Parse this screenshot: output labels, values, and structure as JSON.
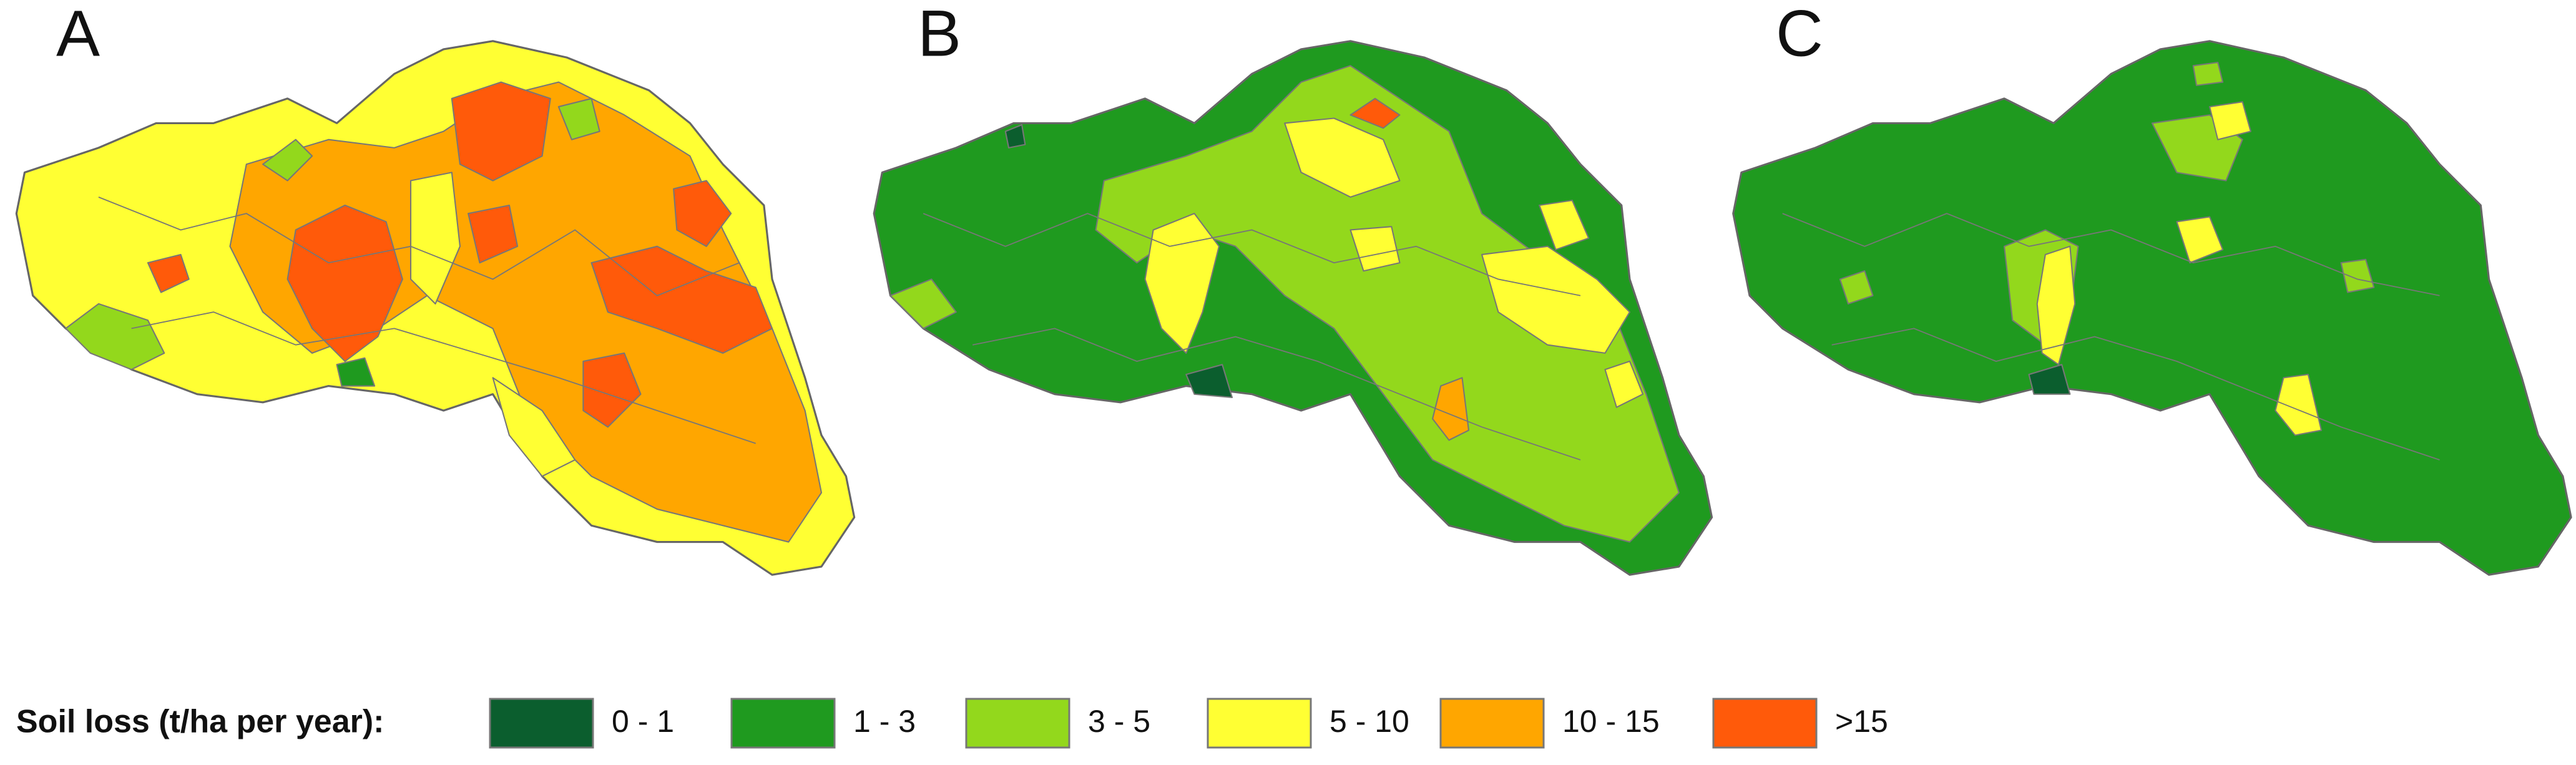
{
  "panels": [
    {
      "label": "A"
    },
    {
      "label": "B"
    },
    {
      "label": "C"
    }
  ],
  "legend": {
    "title": "Soil loss (t/ha per year):",
    "items": [
      {
        "label": "0 - 1",
        "color": "#0b5e2e"
      },
      {
        "label": "1 - 3",
        "color": "#1f9a1f"
      },
      {
        "label": "3 - 5",
        "color": "#93d81c"
      },
      {
        "label": "5 - 10",
        "color": "#ffff33"
      },
      {
        "label": "10 - 15",
        "color": "#ffa600"
      },
      {
        "label": ">15",
        "color": "#ff5a0a"
      }
    ]
  }
}
